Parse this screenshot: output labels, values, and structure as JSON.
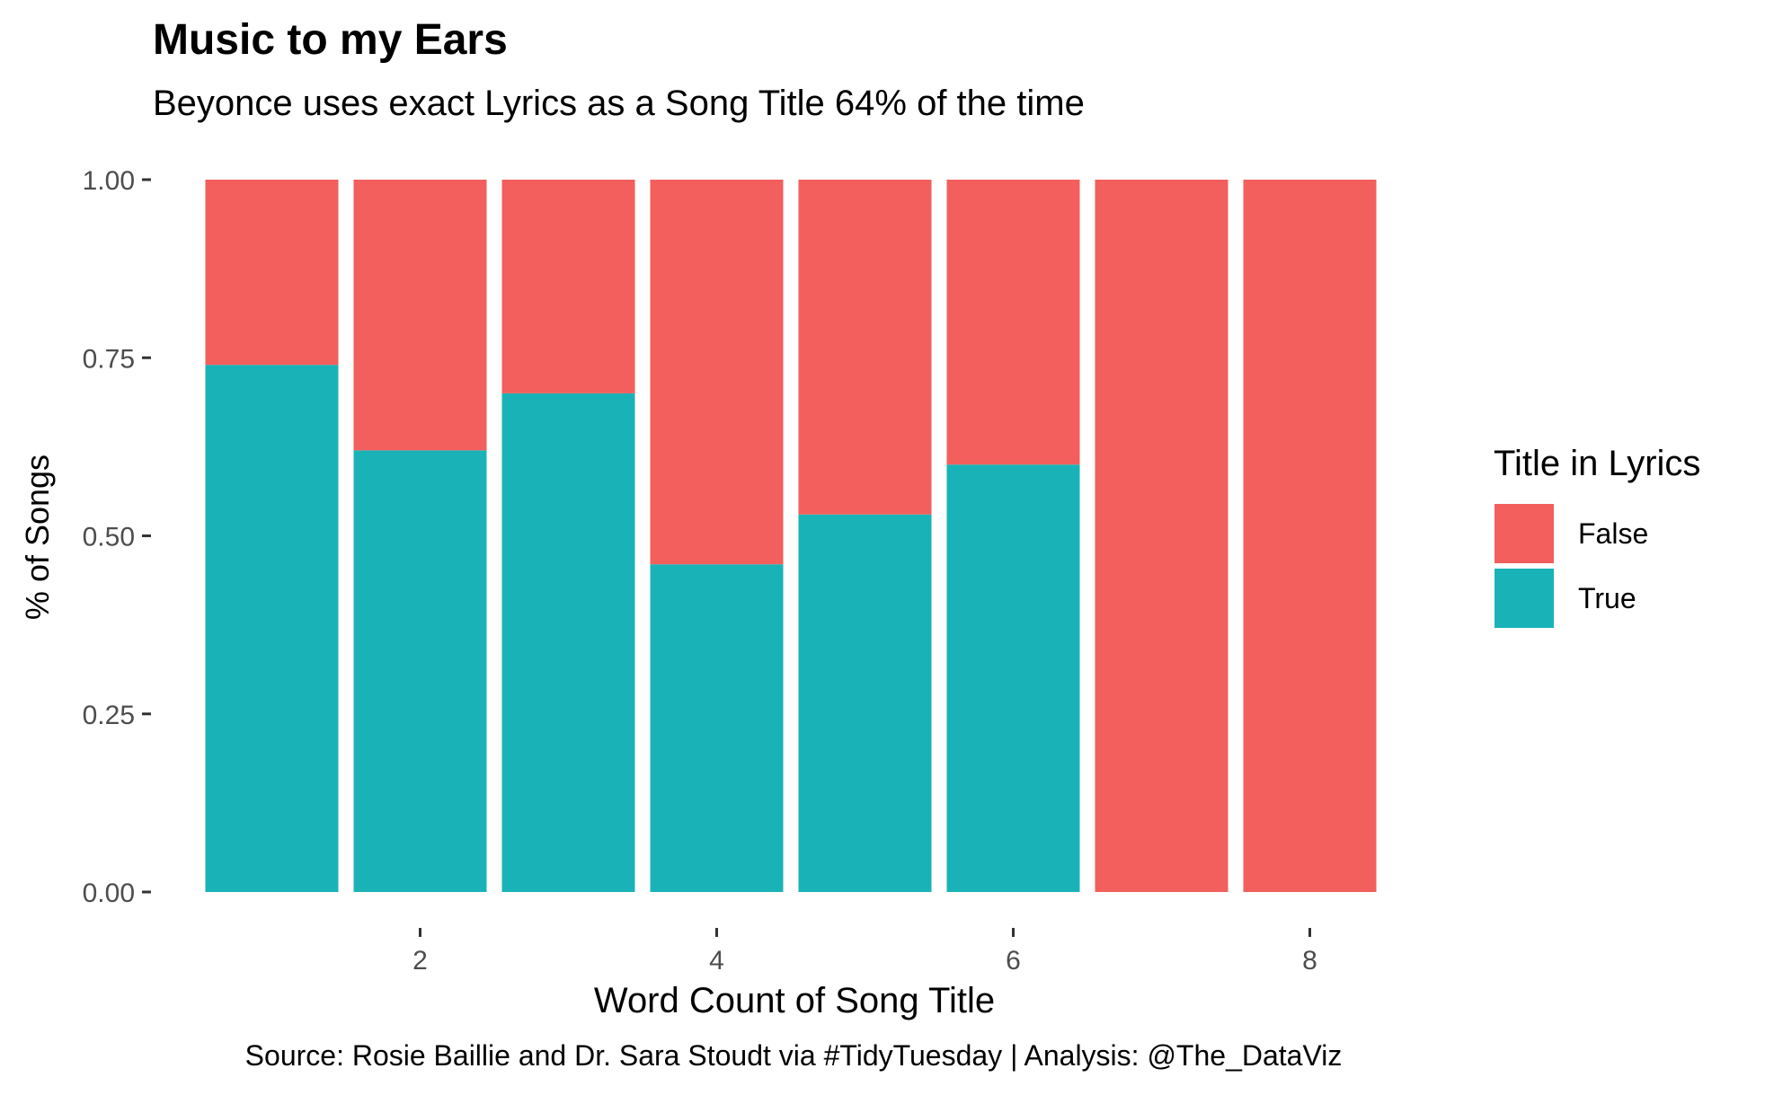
{
  "chart_data": {
    "type": "bar",
    "stacked": true,
    "normalized": true,
    "title": "Music to my Ears",
    "subtitle": "Beyonce uses exact Lyrics as a Song Title 64% of the time",
    "xlabel": "Word Count of Song Title",
    "ylabel": "% of Songs",
    "caption": "Source: Rosie Baillie and Dr. Sara Stoudt via #TidyTuesday | Analysis: @The_DataViz",
    "x": [
      1,
      2,
      3,
      4,
      5,
      6,
      7,
      8
    ],
    "x_ticks": [
      2,
      4,
      6,
      8
    ],
    "y_ticks": [
      "0.00",
      "0.25",
      "0.50",
      "0.75",
      "1.00"
    ],
    "ylim": [
      0,
      1
    ],
    "grid": false,
    "legend": {
      "title": "Title in Lyrics",
      "position": "right"
    },
    "series": [
      {
        "name": "False",
        "color": "#F25F5C",
        "values": [
          0.26,
          0.38,
          0.3,
          0.54,
          0.47,
          0.4,
          1.0,
          1.0
        ]
      },
      {
        "name": "True",
        "color": "#19B3B7",
        "values": [
          0.74,
          0.62,
          0.7,
          0.46,
          0.53,
          0.6,
          0.0,
          0.0
        ]
      }
    ]
  }
}
